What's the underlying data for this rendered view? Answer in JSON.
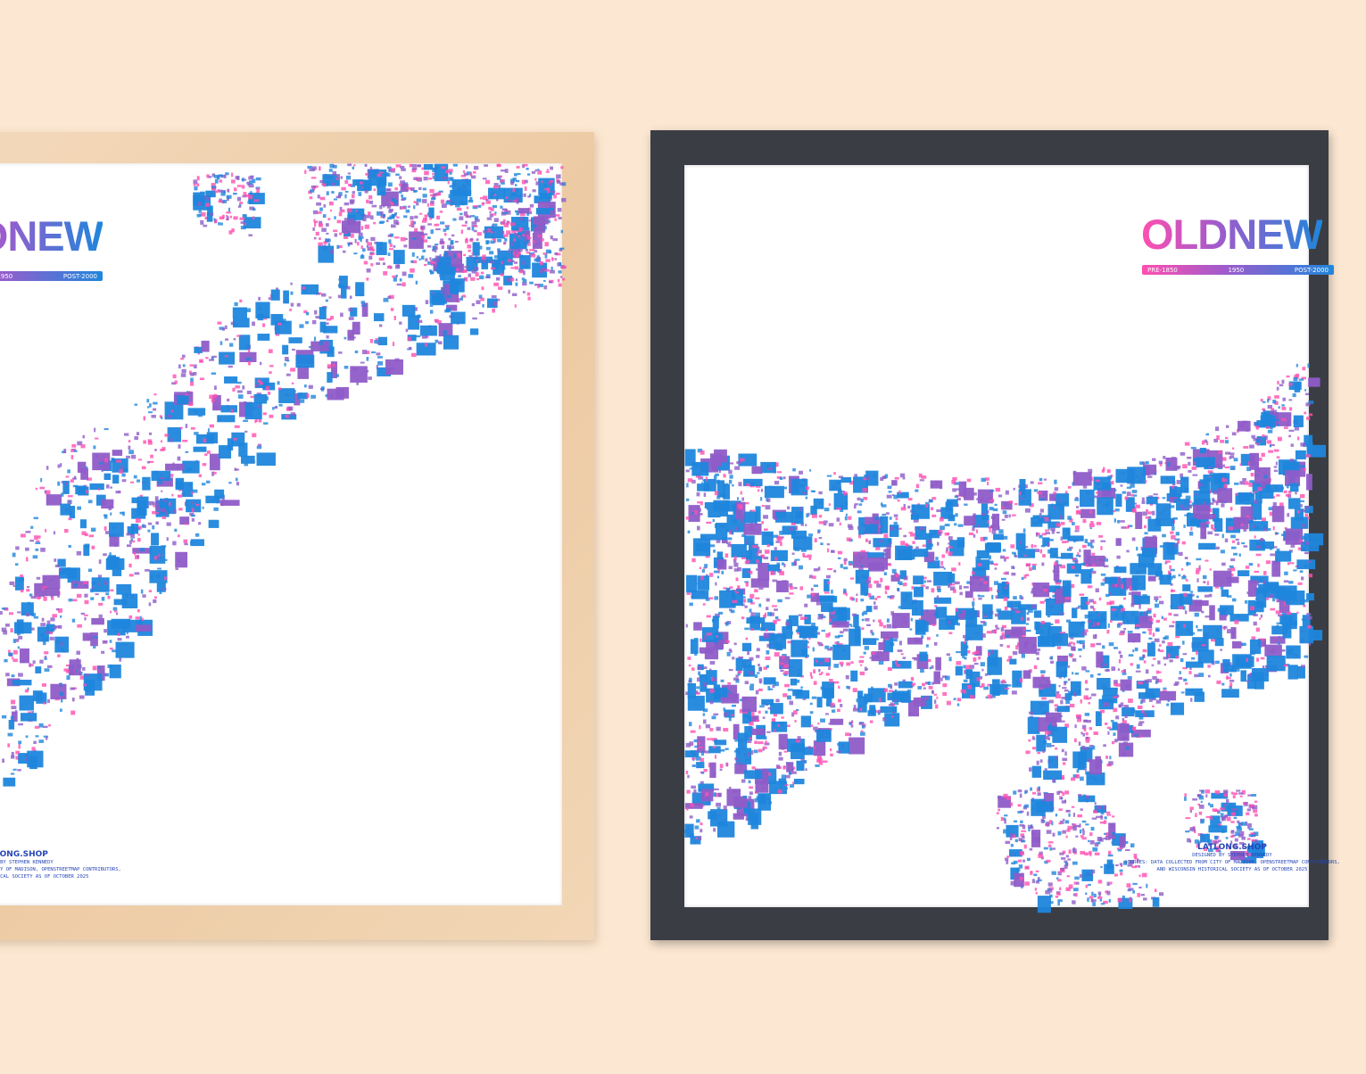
{
  "colors": {
    "background": "#fce8d2",
    "old": "#ff4fb0",
    "mid": "#8f5cc8",
    "new": "#1f86dc",
    "wood_frame": "#efd0ad",
    "black_frame": "#3a3d43"
  },
  "poster": {
    "title": "OLDNEW",
    "legend": {
      "start": "PRE-1850",
      "middle": "1950",
      "end": "POST-2000"
    },
    "brand": "LATLONG.SHOP",
    "designer": "DESIGNED BY STEPHEN KENNEDY",
    "sources_line1": "SOURCES: DATA COLLECTED FROM CITY OF MADISON, OPENSTREETMAP CONTRIBUTORS,",
    "sources_line2": "AND WISCONSIN HISTORICAL SOCIETY AS OF OCTOBER 2025"
  }
}
